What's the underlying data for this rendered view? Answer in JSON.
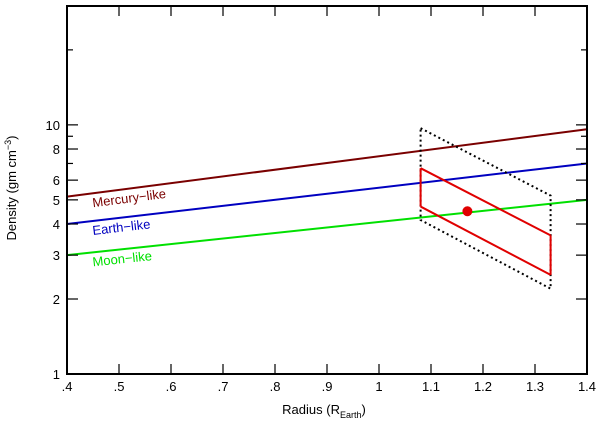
{
  "chart_data": {
    "type": "line",
    "xlabel": {
      "main": "Radius (R",
      "sub": "Earth",
      "close": ")"
    },
    "ylabel": {
      "main": "Density (gm cm",
      "sup": "−3",
      "close": ")"
    },
    "xlim": [
      0.4,
      1.4
    ],
    "ylim": [
      1,
      30
    ],
    "yscale": "log",
    "grid": false,
    "x_ticks": [
      {
        "value": 0.4,
        "label": ".4"
      },
      {
        "value": 0.5,
        "label": ".5"
      },
      {
        "value": 0.6,
        "label": ".6"
      },
      {
        "value": 0.7,
        "label": ".7"
      },
      {
        "value": 0.8,
        "label": ".8"
      },
      {
        "value": 0.9,
        "label": ".9"
      },
      {
        "value": 1.0,
        "label": "1"
      },
      {
        "value": 1.1,
        "label": "1.1"
      },
      {
        "value": 1.2,
        "label": "1.2"
      },
      {
        "value": 1.3,
        "label": "1.3"
      },
      {
        "value": 1.4,
        "label": "1.4"
      }
    ],
    "y_ticks": [
      {
        "value": 1,
        "label": "1"
      },
      {
        "value": 2,
        "label": "2"
      },
      {
        "value": 3,
        "label": "3"
      },
      {
        "value": 4,
        "label": "4"
      },
      {
        "value": 5,
        "label": "5"
      },
      {
        "value": 6,
        "label": "6"
      },
      {
        "value": 8,
        "label": "8"
      },
      {
        "value": 10,
        "label": "10"
      }
    ],
    "y_minor_ticks": [
      7,
      9,
      20
    ],
    "series": [
      {
        "name": "Mercury−like",
        "color": "#7a0000",
        "x": [
          0.4,
          1.4
        ],
        "y": [
          5.15,
          9.6
        ]
      },
      {
        "name": "Earth−like",
        "color": "#0000c0",
        "x": [
          0.4,
          1.4
        ],
        "y": [
          4.0,
          7.0
        ]
      },
      {
        "name": "Moon−like",
        "color": "#00e000",
        "x": [
          0.4,
          1.4
        ],
        "y": [
          3.0,
          5.0
        ]
      }
    ],
    "uncertainty_box": {
      "color": "#000000",
      "style": "dotted",
      "points": [
        [
          1.08,
          9.7
        ],
        [
          1.33,
          5.2
        ],
        [
          1.33,
          2.2
        ],
        [
          1.08,
          4.15
        ]
      ]
    },
    "constraint_lines": {
      "color": "#e00000",
      "lines": [
        {
          "x": [
            1.08,
            1.33
          ],
          "y": [
            6.7,
            3.6
          ]
        },
        {
          "x": [
            1.08,
            1.33
          ],
          "y": [
            4.7,
            2.5
          ]
        }
      ],
      "end_segments": [
        {
          "x": [
            1.08,
            1.08
          ],
          "y": [
            4.7,
            6.7
          ]
        },
        {
          "x": [
            1.33,
            1.33
          ],
          "y": [
            2.5,
            3.6
          ]
        }
      ]
    },
    "point": {
      "x": 1.17,
      "y": 4.5,
      "color": "#e00000"
    }
  }
}
